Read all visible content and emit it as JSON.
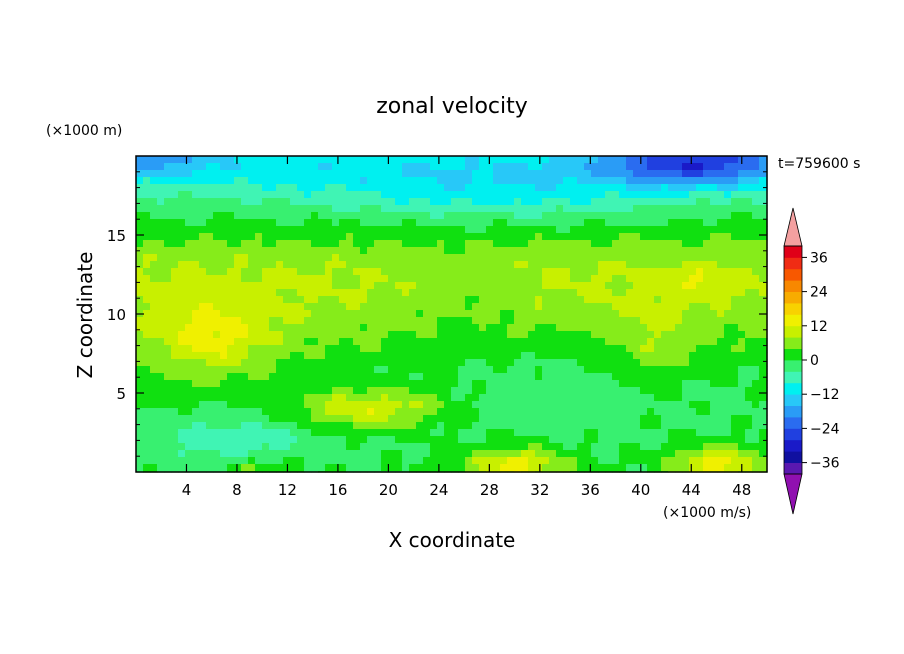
{
  "chart_data": {
    "type": "heatmap",
    "title": "zonal velocity",
    "time_label": "t=759600 s",
    "xlabel": "X coordinate",
    "ylabel": "Z coordinate",
    "x_unit": "(×1000 m/s)",
    "y_unit": "(×1000 m)",
    "xlim": [
      0,
      50
    ],
    "ylim": [
      0,
      20
    ],
    "x_ticks": [
      4,
      8,
      12,
      16,
      20,
      24,
      28,
      32,
      36,
      40,
      44,
      48
    ],
    "y_ticks": [
      5,
      10,
      15
    ],
    "colorbar": {
      "levels": [
        -40,
        -36,
        -32,
        -28,
        -24,
        -20,
        -16,
        -12,
        -8,
        -4,
        0,
        4,
        8,
        12,
        16,
        20,
        24,
        28,
        32,
        36,
        40
      ],
      "tick_labels": [
        36,
        24,
        12,
        0,
        -12,
        -24,
        -36
      ],
      "colors": [
        "#5a18b0",
        "#1010a0",
        "#1a1ac8",
        "#2040e0",
        "#2a6cf0",
        "#2a9cf6",
        "#28c8f8",
        "#00f0f0",
        "#40f4b4",
        "#38f070",
        "#10e010",
        "#86ec1a",
        "#c8f000",
        "#f0f000",
        "#f8d200",
        "#f8ac00",
        "#f88800",
        "#f85800",
        "#f02c14",
        "#e00018"
      ],
      "under_color": "#9010b0",
      "over_color": "#f4a0a0"
    },
    "field_features": [
      {
        "x": 6,
        "z": 8,
        "value": 12
      },
      {
        "x": 17,
        "z": 3.9,
        "value": 14
      },
      {
        "x": 30,
        "z": 0.5,
        "value": 14
      },
      {
        "x": 46,
        "z": 0.6,
        "value": 14
      },
      {
        "x": 44,
        "z": 12.3,
        "value": 6
      },
      {
        "x": 38,
        "z": 18.9,
        "value": -22
      },
      {
        "x": 46,
        "z": 19.3,
        "value": -26
      }
    ]
  }
}
